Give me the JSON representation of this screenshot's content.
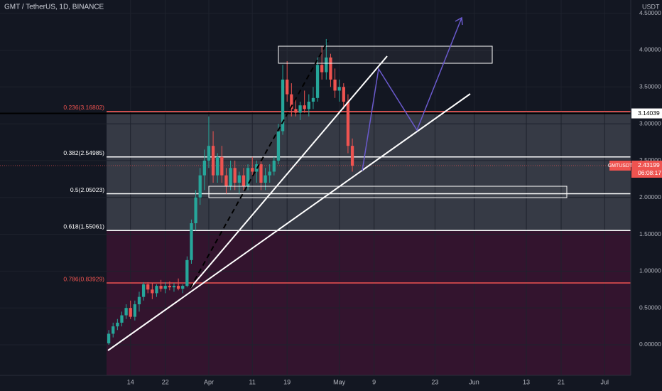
{
  "chart_data": {
    "type": "candlestick",
    "title": "GMT / TetherUS, 1D, BINANCE",
    "currency": "USDT",
    "x": [
      -5,
      -4,
      -3,
      -2,
      -1,
      0,
      1,
      2,
      3,
      4,
      5,
      6,
      7,
      8,
      9,
      10,
      11,
      12,
      13,
      14,
      15,
      16,
      17,
      18,
      19,
      20,
      21,
      22,
      23,
      24,
      25,
      26,
      27,
      28,
      29,
      30,
      31,
      32,
      33,
      34,
      35,
      36,
      37,
      38,
      39,
      40,
      41,
      42,
      43,
      44,
      45,
      46,
      47,
      48,
      49,
      50,
      51
    ],
    "open": [
      0.02,
      0.15,
      0.25,
      0.3,
      0.4,
      0.5,
      0.38,
      0.55,
      0.65,
      0.82,
      0.75,
      0.7,
      0.8,
      0.76,
      0.8,
      0.78,
      0.8,
      0.76,
      0.8,
      1.15,
      1.65,
      2.0,
      2.3,
      2.5,
      2.7,
      2.3,
      2.55,
      2.3,
      2.15,
      2.4,
      2.2,
      2.3,
      2.15,
      2.4,
      2.35,
      2.45,
      2.2,
      2.3,
      2.35,
      2.5,
      2.9,
      3.6,
      3.4,
      3.2,
      3.15,
      3.25,
      3.2,
      3.3,
      3.35,
      3.8,
      3.7,
      3.9,
      3.6,
      3.45,
      3.5,
      3.3,
      2.7
    ],
    "high": [
      0.2,
      0.3,
      0.35,
      0.45,
      0.55,
      0.6,
      0.6,
      0.72,
      0.85,
      0.85,
      0.84,
      0.82,
      0.88,
      0.85,
      0.86,
      0.84,
      0.9,
      0.82,
      1.2,
      1.7,
      2.1,
      2.4,
      2.65,
      3.1,
      2.9,
      2.6,
      2.7,
      2.4,
      2.5,
      2.5,
      2.35,
      2.4,
      2.45,
      2.55,
      2.5,
      2.5,
      2.4,
      2.45,
      2.55,
      3.0,
      3.8,
      3.85,
      3.55,
      3.35,
      3.3,
      3.45,
      3.4,
      3.5,
      3.9,
      4.05,
      4.15,
      3.95,
      3.75,
      3.6,
      3.55,
      3.4,
      2.8
    ],
    "low": [
      0.0,
      0.1,
      0.2,
      0.25,
      0.35,
      0.35,
      0.33,
      0.45,
      0.6,
      0.7,
      0.62,
      0.65,
      0.72,
      0.7,
      0.74,
      0.72,
      0.74,
      0.7,
      0.78,
      1.1,
      1.55,
      1.9,
      2.1,
      2.4,
      2.2,
      2.2,
      2.2,
      2.05,
      2.1,
      2.1,
      2.05,
      2.1,
      2.1,
      2.3,
      2.2,
      2.1,
      2.1,
      2.2,
      2.3,
      2.45,
      2.85,
      3.3,
      3.1,
      3.1,
      3.05,
      3.15,
      3.1,
      3.2,
      3.3,
      3.6,
      3.6,
      3.5,
      3.35,
      3.3,
      3.2,
      2.6,
      2.35
    ],
    "close": [
      0.15,
      0.25,
      0.3,
      0.4,
      0.5,
      0.38,
      0.55,
      0.65,
      0.82,
      0.75,
      0.7,
      0.8,
      0.76,
      0.8,
      0.78,
      0.8,
      0.76,
      0.8,
      1.15,
      1.65,
      2.0,
      2.3,
      2.5,
      2.7,
      2.3,
      2.55,
      2.3,
      2.15,
      2.4,
      2.2,
      2.3,
      2.15,
      2.4,
      2.35,
      2.45,
      2.2,
      2.3,
      2.35,
      2.5,
      2.9,
      3.6,
      3.4,
      3.2,
      3.15,
      3.25,
      3.2,
      3.3,
      3.35,
      3.8,
      3.7,
      3.9,
      3.6,
      3.45,
      3.5,
      3.3,
      2.7,
      2.43
    ],
    "up_color": "#26a69a",
    "down_color": "#ef5350",
    "xlim": [
      -30,
      115
    ],
    "xticks": [
      {
        "value": 0,
        "label": "14"
      },
      {
        "value": 8,
        "label": "22"
      },
      {
        "value": 18,
        "label": "Apr"
      },
      {
        "value": 28,
        "label": "11"
      },
      {
        "value": 36,
        "label": "19"
      },
      {
        "value": 48,
        "label": "May"
      },
      {
        "value": 56,
        "label": "9"
      },
      {
        "value": 70,
        "label": "23"
      },
      {
        "value": 79,
        "label": "Jun"
      },
      {
        "value": 91,
        "label": "13"
      },
      {
        "value": 99,
        "label": "21"
      },
      {
        "value": 109,
        "label": "Jul"
      }
    ],
    "ylim": [
      -0.415,
      4.68
    ],
    "yticks": [
      {
        "value": 0,
        "label": "0.00000"
      },
      {
        "value": 0.5,
        "label": "0.50000"
      },
      {
        "value": 1,
        "label": "1.00000"
      },
      {
        "value": 1.5,
        "label": "1.50000"
      },
      {
        "value": 2,
        "label": "2.00000"
      },
      {
        "value": 2.5,
        "label": "2.50000"
      },
      {
        "value": 3,
        "label": "3.00000"
      },
      {
        "value": 3.5,
        "label": "3.50000"
      },
      {
        "value": 4,
        "label": "4.00000"
      },
      {
        "value": 4.5,
        "label": "4.50000"
      }
    ],
    "grid": true,
    "fib_levels": [
      {
        "value": 3.16802,
        "label": "0.236(3.16802)",
        "color": "#ef5350"
      },
      {
        "value": 2.54985,
        "label": "0.382(2.54985)",
        "color": "#ffffff"
      },
      {
        "value": 2.05023,
        "label": "0.5(2.05023)",
        "color": "#ffffff"
      },
      {
        "value": 1.55061,
        "label": "0.618(1.55061)",
        "color": "#ffffff"
      },
      {
        "value": 0.83929,
        "label": "0.786(0.83929)",
        "color": "#ef5350"
      }
    ],
    "marked_price": {
      "value": 3.14039,
      "label": "3.14039"
    },
    "last_price": {
      "symbol": "GMTUSDT",
      "value": 2.43199,
      "label": "2.43199",
      "countdown": "06:08:17"
    }
  }
}
